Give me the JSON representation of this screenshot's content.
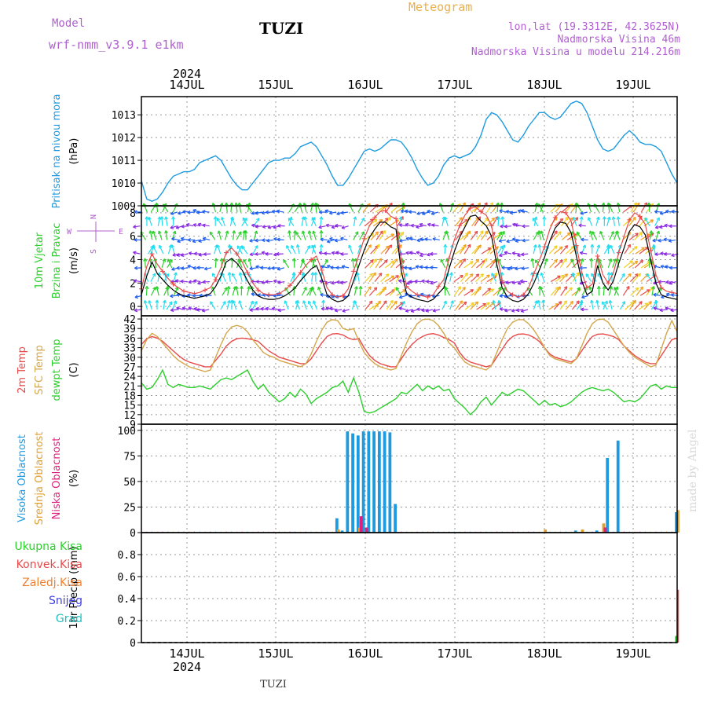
{
  "header": {
    "model_label": "Model",
    "model_value": "wrf-nmm_v3.9.1  e1km",
    "station": "TUZI",
    "product": "Meteogram",
    "lonlat": "lon,lat (19.3312E, 42.3625N)",
    "elevation": "Nadmorska Visina 46m",
    "model_elevation": "Nadmorska Visina u modelu 214.216m"
  },
  "footer": {
    "station": "TUZI",
    "watermark": "made by Angel"
  },
  "colors": {
    "pressure": "#1e9be0",
    "t2m": "#e84a4a",
    "sfc": "#d4a64a",
    "dewpt": "#2ccf2c",
    "cloud_high": "#1e9be0",
    "cloud_mid": "#e0a030",
    "cloud_low": "#e0207f",
    "precip_total": "#2ccf2c",
    "precip_conv": "#e84a4a",
    "precip_frz": "#f08030",
    "snow": "#4040e0",
    "graupel": "#20c0c0",
    "wind_speed": "#000000",
    "wind_gust": "#e84a4a"
  },
  "chart_data": {
    "year": "2024",
    "days": [
      "14JUL",
      "15JUL",
      "16JUL",
      "17JUL",
      "18JUL",
      "19JUL"
    ],
    "hour_step": 1,
    "panels": [
      {
        "id": "pressure",
        "type": "line",
        "ylabel_lines": [
          {
            "text": "Pritisak na nivou mora",
            "color": "#1e9be0"
          },
          {
            "text": "(hPa)",
            "color": "#000000"
          }
        ],
        "ylim": [
          1009,
          1013.8
        ],
        "yticks": [
          1009,
          1010,
          1011,
          1012,
          1013
        ],
        "series": [
          {
            "name": "Pritisak na nivou mora",
            "values": [
              1010.1,
              1009.3,
              1009.2,
              1009.3,
              1009.6,
              1010.0,
              1010.3,
              1010.4,
              1010.5,
              1010.5,
              1010.6,
              1010.9,
              1011.0,
              1011.1,
              1011.2,
              1011.0,
              1010.6,
              1010.2,
              1009.9,
              1009.7,
              1009.7,
              1010.0,
              1010.3,
              1010.6,
              1010.9,
              1011.0,
              1011.0,
              1011.1,
              1011.1,
              1011.3,
              1011.6,
              1011.7,
              1011.8,
              1011.6,
              1011.2,
              1010.8,
              1010.3,
              1009.9,
              1009.9,
              1010.2,
              1010.6,
              1011.0,
              1011.4,
              1011.5,
              1011.4,
              1011.5,
              1011.7,
              1011.9,
              1011.9,
              1011.8,
              1011.5,
              1011.1,
              1010.6,
              1010.2,
              1009.9,
              1010.0,
              1010.3,
              1010.8,
              1011.1,
              1011.2,
              1011.1,
              1011.2,
              1011.3,
              1011.6,
              1012.1,
              1012.8,
              1013.1,
              1013.0,
              1012.7,
              1012.3,
              1011.9,
              1011.8,
              1012.1,
              1012.5,
              1012.8,
              1013.1,
              1013.1,
              1012.9,
              1012.8,
              1012.9,
              1013.2,
              1013.5,
              1013.6,
              1013.5,
              1013.1,
              1012.5,
              1011.9,
              1011.5,
              1011.4,
              1011.5,
              1011.8,
              1012.1,
              1012.3,
              1012.1,
              1011.8,
              1011.7,
              1011.7,
              1011.6,
              1011.4,
              1010.9,
              1010.4,
              1010.0
            ]
          }
        ]
      },
      {
        "id": "wind",
        "type": "line",
        "ylabel_lines": [
          {
            "text": "10m  Vjetar",
            "color": "#2ccf2c"
          },
          {
            "text": "Brzina  i  Pravac",
            "color": "#2ccf2c"
          },
          {
            "text": "(m/s)",
            "color": "#000000"
          }
        ],
        "compass": {
          "north": "N",
          "south": "S",
          "east": "E",
          "west": "W"
        },
        "ylim": [
          -0.8,
          8.6
        ],
        "yticks": [
          0,
          2,
          4,
          6,
          8
        ],
        "series": [
          {
            "name": "speed",
            "values": [
              1.0,
              2.6,
              3.8,
              2.8,
              2.3,
              1.8,
              1.4,
              1.1,
              0.9,
              0.8,
              0.7,
              0.8,
              0.9,
              1.1,
              1.7,
              2.6,
              3.8,
              4.1,
              3.7,
              3.1,
              2.2,
              1.4,
              0.9,
              0.7,
              0.6,
              0.6,
              0.7,
              0.9,
              1.2,
              1.6,
              2.2,
              2.7,
              3.2,
              3.5,
              2.4,
              1.0,
              0.6,
              0.4,
              0.5,
              0.9,
              2.2,
              3.5,
              4.8,
              5.9,
              6.6,
              7.2,
              7.2,
              6.8,
              6.6,
              3.0,
              1.1,
              0.8,
              0.6,
              0.5,
              0.4,
              0.6,
              1.1,
              1.6,
              3.2,
              4.7,
              5.9,
              6.8,
              7.7,
              7.8,
              7.3,
              6.9,
              6.0,
              3.6,
              1.6,
              0.8,
              0.5,
              0.4,
              0.6,
              1.1,
              2.0,
              3.1,
              4.2,
              5.6,
              6.7,
              7.2,
              7.1,
              6.3,
              4.3,
              2.2,
              1.0,
              1.3,
              3.5,
              2.0,
              1.4,
              2.2,
              3.7,
              5.0,
              6.4,
              7.0,
              6.8,
              6.1,
              4.0,
              2.0,
              1.0,
              0.8,
              0.7,
              0.6
            ]
          },
          {
            "name": "gust",
            "values": [
              1.5,
              3.4,
              4.5,
              3.6,
              3.0,
              2.4,
              1.9,
              1.6,
              1.3,
              1.2,
              1.1,
              1.2,
              1.4,
              1.6,
              2.3,
              3.3,
              4.6,
              5.0,
              4.5,
              3.8,
              2.9,
              2.0,
              1.4,
              1.1,
              1.0,
              1.0,
              1.1,
              1.4,
              1.8,
              2.3,
              2.9,
              3.5,
              4.0,
              4.3,
              3.1,
              1.6,
              1.0,
              0.8,
              0.9,
              1.5,
              3.0,
              4.4,
              5.8,
              6.9,
              7.6,
              8.1,
              8.2,
              7.7,
              7.5,
              3.8,
              1.7,
              1.3,
              1.0,
              0.9,
              0.8,
              1.0,
              1.7,
              2.3,
              4.1,
              5.7,
              6.9,
              7.8,
              8.4,
              8.5,
              8.1,
              7.8,
              6.9,
              4.5,
              2.2,
              1.3,
              1.0,
              0.8,
              1.0,
              1.6,
              2.8,
              3.9,
              5.1,
              6.6,
              7.6,
              8.1,
              8.0,
              7.3,
              5.2,
              2.9,
              1.6,
              1.9,
              4.3,
              2.7,
              2.0,
              2.9,
              4.6,
              6.0,
              7.4,
              8.0,
              7.7,
              7.0,
              4.8,
              2.7,
              1.6,
              1.3,
              1.2,
              1.1
            ]
          }
        ]
      },
      {
        "id": "temp",
        "type": "line",
        "ylabel_lines": [
          {
            "text": "2m  Temp",
            "color": "#e84a4a"
          },
          {
            "text": "SFC  Temp",
            "color": "#d4a64a"
          },
          {
            "text": "dewpt  Temp",
            "color": "#2ccf2c"
          },
          {
            "text": "(C)",
            "color": "#000000"
          }
        ],
        "ylim": [
          9,
          43
        ],
        "yticks": [
          9,
          12,
          15,
          18,
          21,
          24,
          27,
          30,
          33,
          36,
          39,
          42
        ],
        "series": [
          {
            "name": "2m Temp",
            "values": [
              34.0,
              35.8,
              36.5,
              36.0,
              35.0,
              33.5,
              32.0,
              30.5,
              29.3,
              28.5,
              28.0,
              27.5,
              27.0,
              27.0,
              29.0,
              31.0,
              33.5,
              35.0,
              35.8,
              36.0,
              35.8,
              35.5,
              35.0,
              33.5,
              32.0,
              31.0,
              30.0,
              29.5,
              29.0,
              28.5,
              28.0,
              28.0,
              29.5,
              32.0,
              34.5,
              36.5,
              37.3,
              37.4,
              37.0,
              36.0,
              35.5,
              35.8,
              33.0,
              30.5,
              29.0,
              28.0,
              27.5,
              27.0,
              27.0,
              29.5,
              32.0,
              34.0,
              35.5,
              36.5,
              37.2,
              37.4,
              37.0,
              36.2,
              35.5,
              34.5,
              31.5,
              29.5,
              28.5,
              28.0,
              27.5,
              27.0,
              27.5,
              30.0,
              32.5,
              35.0,
              36.5,
              37.2,
              37.3,
              37.0,
              36.2,
              35.0,
              33.0,
              31.0,
              30.0,
              29.5,
              29.0,
              28.5,
              29.5,
              32.0,
              34.5,
              36.5,
              37.2,
              37.3,
              37.0,
              36.5,
              35.5,
              33.5,
              32.0,
              30.5,
              29.5,
              28.5,
              28.0,
              28.0,
              30.5,
              33.0,
              35.5,
              36.0
            ]
          },
          {
            "name": "SFC Temp",
            "values": [
              32.0,
              35.5,
              37.5,
              36.5,
              34.5,
              32.5,
              30.5,
              29.0,
              28.0,
              27.0,
              26.5,
              26.0,
              25.5,
              26.0,
              30.0,
              34.0,
              37.5,
              39.5,
              40.0,
              39.5,
              38.0,
              35.5,
              33.5,
              31.5,
              30.5,
              30.0,
              29.0,
              28.5,
              28.0,
              27.5,
              27.0,
              28.0,
              31.0,
              35.0,
              38.5,
              41.0,
              41.8,
              41.5,
              39.0,
              38.5,
              39.0,
              35.0,
              31.5,
              29.5,
              28.0,
              27.0,
              26.5,
              26.0,
              26.5,
              30.5,
              34.5,
              38.0,
              40.5,
              41.8,
              42.0,
              41.5,
              40.0,
              37.5,
              34.5,
              33.0,
              30.5,
              28.5,
              27.5,
              27.0,
              26.5,
              26.0,
              27.5,
              31.5,
              35.5,
              39.0,
              41.0,
              41.8,
              41.8,
              40.5,
              38.5,
              36.0,
              33.0,
              30.5,
              29.5,
              29.0,
              28.5,
              28.0,
              29.5,
              33.5,
              37.5,
              40.5,
              41.8,
              42.0,
              41.0,
              38.5,
              36.0,
              33.5,
              31.5,
              30.0,
              29.0,
              28.0,
              27.0,
              27.5,
              32.5,
              37.5,
              41.5,
              38.0
            ]
          },
          {
            "name": "dewpt Temp",
            "values": [
              22.0,
              20.0,
              20.5,
              23.0,
              26.0,
              21.5,
              20.5,
              21.5,
              21.0,
              20.5,
              20.5,
              21.0,
              20.5,
              20.0,
              21.5,
              23.0,
              23.5,
              23.0,
              24.0,
              25.0,
              26.0,
              22.5,
              20.0,
              21.5,
              19.0,
              17.5,
              16.0,
              17.0,
              19.0,
              17.5,
              20.0,
              18.5,
              15.5,
              17.0,
              18.0,
              19.0,
              20.5,
              21.0,
              22.5,
              19.0,
              23.5,
              19.0,
              13.0,
              12.5,
              13.0,
              14.0,
              15.0,
              16.0,
              17.0,
              19.0,
              18.5,
              20.0,
              21.5,
              19.5,
              21.0,
              20.0,
              21.0,
              19.5,
              20.0,
              17.0,
              15.5,
              14.0,
              12.0,
              13.5,
              16.0,
              17.5,
              15.0,
              17.0,
              19.0,
              18.0,
              19.0,
              20.0,
              19.5,
              18.0,
              16.5,
              15.0,
              16.5,
              15.0,
              15.5,
              14.5,
              15.0,
              16.0,
              17.5,
              19.0,
              20.0,
              20.5,
              20.0,
              19.5,
              20.0,
              19.0,
              17.5,
              16.0,
              16.5,
              16.0,
              17.0,
              19.0,
              21.0,
              21.5,
              20.0,
              21.0,
              20.5,
              20.5
            ]
          }
        ]
      },
      {
        "id": "cloud",
        "type": "bar",
        "ylabel_lines": [
          {
            "text": "Visoka  Oblacnost",
            "color": "#1e9be0"
          },
          {
            "text": "Srednja  Oblacnost",
            "color": "#e0a030"
          },
          {
            "text": "Niska  Oblacnost",
            "color": "#e0207f"
          },
          {
            "text": "(%)",
            "color": "#000000"
          }
        ],
        "ylim": [
          0,
          106
        ],
        "yticks": [
          0,
          25,
          50,
          75,
          100
        ],
        "series": [
          {
            "name": "Visoka Oblacnost",
            "values": [
              {
                "x": 37,
                "y": 14
              },
              {
                "x": 38,
                "y": 2
              },
              {
                "x": 39,
                "y": 99
              },
              {
                "x": 40,
                "y": 97
              },
              {
                "x": 41,
                "y": 95
              },
              {
                "x": 42,
                "y": 99
              },
              {
                "x": 43,
                "y": 99
              },
              {
                "x": 44,
                "y": 99
              },
              {
                "x": 45,
                "y": 99
              },
              {
                "x": 46,
                "y": 99
              },
              {
                "x": 47,
                "y": 98
              },
              {
                "x": 48,
                "y": 28
              },
              {
                "x": 82,
                "y": 2
              },
              {
                "x": 86,
                "y": 2
              },
              {
                "x": 88,
                "y": 73
              },
              {
                "x": 90,
                "y": 90
              },
              {
                "x": 101,
                "y": 20
              }
            ]
          },
          {
            "name": "Srednja Oblacnost",
            "values": [
              {
                "x": 37,
                "y": 3
              },
              {
                "x": 41,
                "y": 5
              },
              {
                "x": 76,
                "y": 3
              },
              {
                "x": 83,
                "y": 3
              },
              {
                "x": 87,
                "y": 9
              },
              {
                "x": 101,
                "y": 22
              }
            ]
          },
          {
            "name": "Niska Oblacnost",
            "values": [
              {
                "x": 41,
                "y": 16
              },
              {
                "x": 42,
                "y": 5
              },
              {
                "x": 87,
                "y": 5
              }
            ]
          }
        ]
      },
      {
        "id": "precip",
        "type": "bar",
        "ylabel_lines": [
          {
            "text": "1hr  Precip  (mm)",
            "color": "#000000"
          }
        ],
        "legend": [
          {
            "text": "Ukupna  Kisa",
            "color": "#2ccf2c"
          },
          {
            "text": "Konvek.Kisa",
            "color": "#e84a4a"
          },
          {
            "text": "Zaledj.Kisa",
            "color": "#f08030"
          },
          {
            "text": "Snijeg",
            "color": "#4040e0"
          },
          {
            "text": "Grad",
            "color": "#20c0c0"
          }
        ],
        "ylim": [
          0,
          1.0
        ],
        "yticks": [
          0,
          0.2,
          0.4,
          0.6,
          0.8
        ],
        "series": [
          {
            "name": "Ukupna Kisa",
            "values": [
              {
                "x": 101,
                "y": 0.06
              }
            ]
          },
          {
            "name": "Konvek.Kisa",
            "values": [
              {
                "x": 101,
                "y": 0.48
              }
            ]
          }
        ]
      }
    ]
  }
}
